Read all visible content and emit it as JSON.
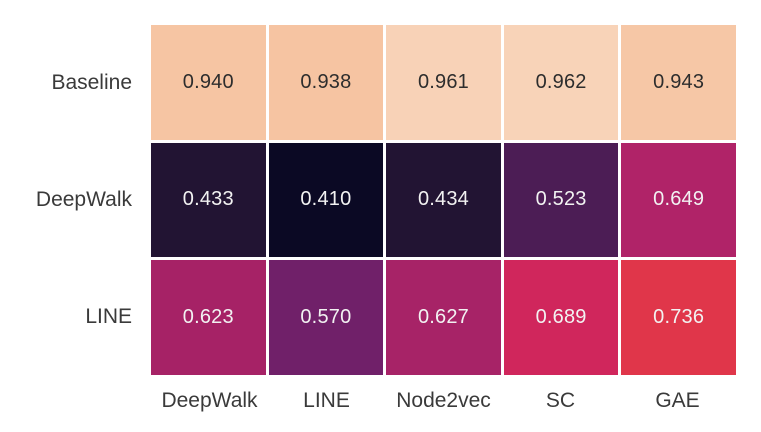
{
  "chart_data": {
    "type": "heatmap",
    "rows": [
      "Baseline",
      "DeepWalk",
      "LINE"
    ],
    "columns": [
      "DeepWalk",
      "LINE",
      "Node2vec",
      "SC",
      "GAE"
    ],
    "values": [
      [
        0.94,
        0.938,
        0.961,
        0.962,
        0.943
      ],
      [
        0.433,
        0.41,
        0.434,
        0.523,
        0.649
      ],
      [
        0.623,
        0.57,
        0.627,
        0.689,
        0.736
      ]
    ],
    "value_labels": [
      [
        "0.940",
        "0.938",
        "0.961",
        "0.962",
        "0.943"
      ],
      [
        "0.433",
        "0.410",
        "0.434",
        "0.523",
        "0.649"
      ],
      [
        "0.623",
        "0.570",
        "0.627",
        "0.689",
        "0.736"
      ]
    ],
    "cell_colors": [
      [
        "#f6c5a3",
        "#f6c4a2",
        "#f8d2b7",
        "#f8d3b8",
        "#f6c7a6"
      ],
      [
        "#221433",
        "#0b0924",
        "#221433",
        "#4c1d55",
        "#b02368"
      ],
      [
        "#a62266",
        "#702069",
        "#a72367",
        "#d0265c",
        "#e0364a"
      ]
    ],
    "text_colors": [
      [
        "#2d2d2d",
        "#2d2d2d",
        "#2d2d2d",
        "#2d2d2d",
        "#2d2d2d"
      ],
      [
        "#f2f2f2",
        "#f2f2f2",
        "#f2f2f2",
        "#f2f2f2",
        "#f2f2f2"
      ],
      [
        "#f2f2f2",
        "#f2f2f2",
        "#f2f2f2",
        "#f2f2f2",
        "#f2f2f2"
      ]
    ],
    "colormap": "rocket",
    "legend": "none",
    "grid_gap_color": "#ffffff",
    "axis_label_color": "#3a3a3a"
  }
}
